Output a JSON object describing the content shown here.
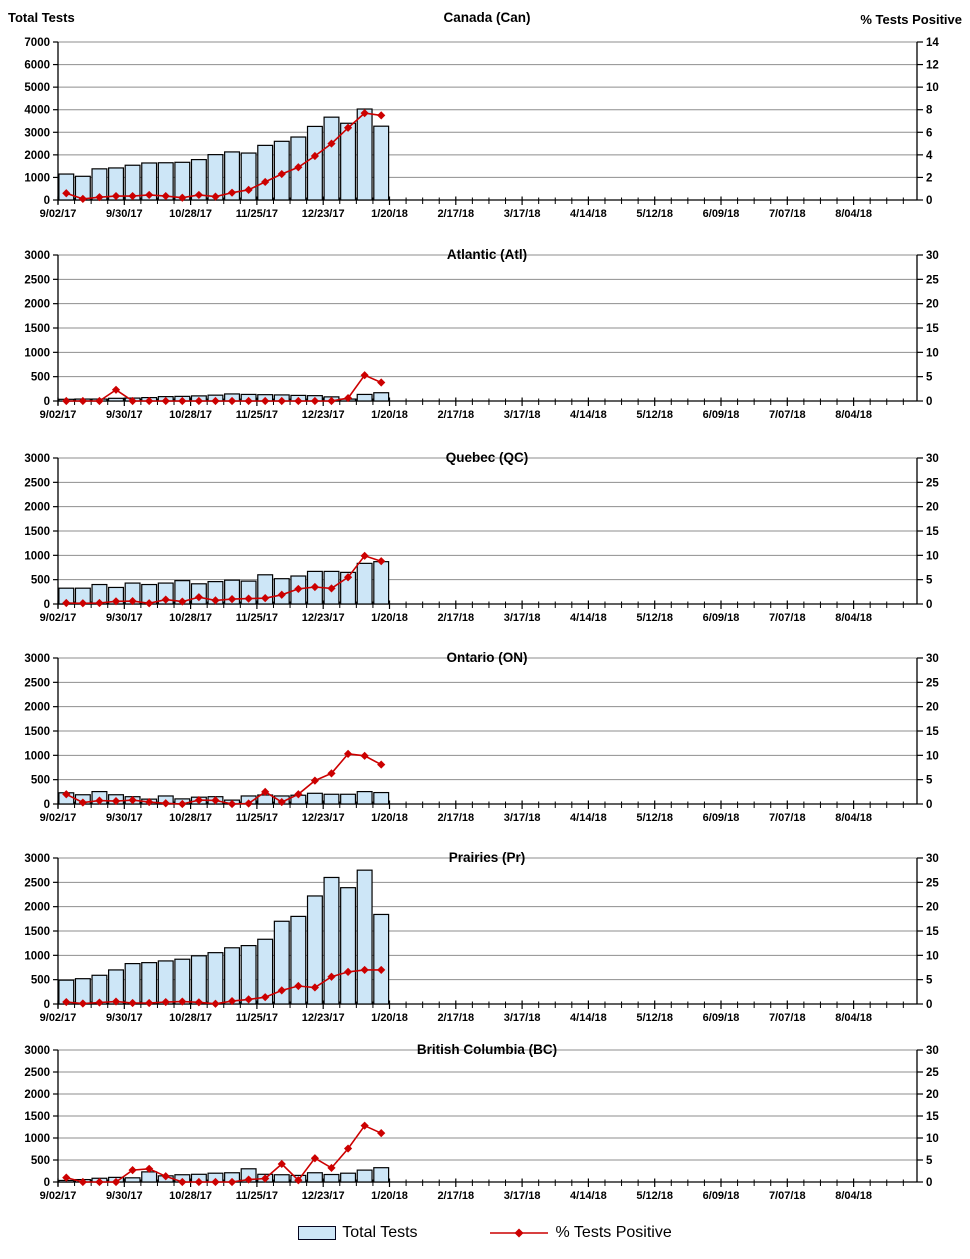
{
  "axis_titles": {
    "left": "Total Tests",
    "right": "% Tests Positive"
  },
  "legend": {
    "items": [
      {
        "label": "Total Tests",
        "type": "bar"
      },
      {
        "label": "% Tests Positive",
        "type": "line"
      }
    ]
  },
  "colors": {
    "background": "#FFFFFF",
    "bar_fill": "#CDE6F7",
    "bar_stroke": "#000000",
    "line": "#CC0000",
    "grid": "#8E8E8E",
    "axis": "#000000",
    "text": "#000000"
  },
  "x_axis": {
    "tick_labels": [
      "9/02/17",
      "9/30/17",
      "10/28/17",
      "11/25/17",
      "12/23/17",
      "1/20/18",
      "2/17/18",
      "3/17/18",
      "4/14/18",
      "5/12/18",
      "6/09/18",
      "7/07/18",
      "8/04/18"
    ],
    "weeks_total": 48,
    "minor_tick_every_weeks": 1,
    "major_tick_every_weeks": 4
  },
  "weeks": [
    "9/02/17",
    "9/09/17",
    "9/16/17",
    "9/23/17",
    "9/30/17",
    "10/07/17",
    "10/14/17",
    "10/21/17",
    "10/28/17",
    "11/04/17",
    "11/11/17",
    "11/18/17",
    "11/25/17",
    "12/02/17",
    "12/09/17",
    "12/16/17",
    "12/23/17",
    "12/30/17",
    "1/06/18",
    "1/13/18"
  ],
  "chart_data": [
    {
      "id": "canada",
      "type": "combo-bar-line",
      "title": "Canada (Can)",
      "left_axis": {
        "label": "Total Tests",
        "min": 0,
        "max": 7000,
        "step": 1000,
        "ticks": [
          "0",
          "1000",
          "2000",
          "3000",
          "4000",
          "5000",
          "6000",
          "7000"
        ]
      },
      "right_axis": {
        "label": "% Tests Positive",
        "min": 0,
        "max": 14,
        "step": 2,
        "ticks": [
          "0",
          "2",
          "4",
          "6",
          "8",
          "10",
          "12",
          "14"
        ]
      },
      "series": [
        {
          "name": "Total Tests",
          "type": "bar",
          "values": [
            1150,
            1050,
            1380,
            1420,
            1540,
            1640,
            1650,
            1670,
            1790,
            2010,
            2130,
            2080,
            2420,
            2600,
            2790,
            3260,
            3670,
            3400,
            4030,
            3270
          ]
        },
        {
          "name": "% Tests Positive",
          "type": "line",
          "values": [
            0.6,
            0.1,
            0.25,
            0.35,
            0.35,
            0.45,
            0.35,
            0.2,
            0.45,
            0.3,
            0.65,
            0.9,
            1.6,
            2.3,
            2.9,
            3.9,
            5.0,
            6.4,
            7.7,
            7.5
          ]
        }
      ]
    },
    {
      "id": "atlantic",
      "type": "combo-bar-line",
      "title": "Atlantic (Atl)",
      "left_axis": {
        "min": 0,
        "max": 3000,
        "step": 500,
        "ticks": [
          "0",
          "500",
          "1000",
          "1500",
          "2000",
          "2500",
          "3000"
        ]
      },
      "right_axis": {
        "min": 0,
        "max": 30,
        "step": 5,
        "ticks": [
          "0",
          "5",
          "10",
          "15",
          "20",
          "25",
          "30"
        ]
      },
      "series": [
        {
          "name": "Total Tests",
          "type": "bar",
          "values": [
            35,
            40,
            40,
            55,
            60,
            70,
            90,
            95,
            105,
            120,
            145,
            135,
            130,
            125,
            115,
            110,
            85,
            40,
            135,
            170
          ]
        },
        {
          "name": "% Tests Positive",
          "type": "line",
          "values": [
            0,
            0,
            0,
            2.3,
            0,
            0,
            0,
            0,
            0,
            0,
            0,
            0,
            0,
            0,
            0,
            0,
            0,
            0.6,
            5.3,
            3.8
          ]
        }
      ]
    },
    {
      "id": "quebec",
      "type": "combo-bar-line",
      "title": "Quebec (QC)",
      "left_axis": {
        "min": 0,
        "max": 3000,
        "step": 500,
        "ticks": [
          "0",
          "500",
          "1000",
          "1500",
          "2000",
          "2500",
          "3000"
        ]
      },
      "right_axis": {
        "min": 0,
        "max": 30,
        "step": 5,
        "ticks": [
          "0",
          "5",
          "10",
          "15",
          "20",
          "25",
          "30"
        ]
      },
      "series": [
        {
          "name": "Total Tests",
          "type": "bar",
          "values": [
            325,
            325,
            400,
            340,
            430,
            400,
            430,
            480,
            415,
            460,
            490,
            470,
            600,
            520,
            575,
            670,
            670,
            650,
            835,
            870
          ]
        },
        {
          "name": "% Tests Positive",
          "type": "line",
          "values": [
            0.2,
            0.15,
            0.2,
            0.55,
            0.6,
            0.15,
            0.9,
            0.5,
            1.4,
            0.75,
            1.0,
            1.1,
            1.2,
            1.9,
            3.1,
            3.5,
            3.2,
            5.5,
            9.9,
            8.8
          ]
        }
      ]
    },
    {
      "id": "ontario",
      "type": "combo-bar-line",
      "title": "Ontario (ON)",
      "left_axis": {
        "min": 0,
        "max": 3000,
        "step": 500,
        "ticks": [
          "0",
          "500",
          "1000",
          "1500",
          "2000",
          "2500",
          "3000"
        ]
      },
      "right_axis": {
        "min": 0,
        "max": 30,
        "step": 5,
        "ticks": [
          "0",
          "5",
          "10",
          "15",
          "20",
          "25",
          "30"
        ]
      },
      "series": [
        {
          "name": "Total Tests",
          "type": "bar",
          "values": [
            230,
            190,
            255,
            190,
            150,
            100,
            165,
            105,
            140,
            150,
            80,
            165,
            185,
            165,
            180,
            220,
            200,
            200,
            255,
            235
          ]
        },
        {
          "name": "% Tests Positive",
          "type": "line",
          "values": [
            2.0,
            0.3,
            0.7,
            0.6,
            0.8,
            0.4,
            0.15,
            0,
            0.8,
            0.75,
            0,
            0.1,
            2.5,
            0.4,
            2.0,
            4.8,
            6.3,
            10.3,
            9.9,
            8.1
          ]
        }
      ]
    },
    {
      "id": "prairies",
      "type": "combo-bar-line",
      "title": "Prairies (Pr)",
      "left_axis": {
        "min": 0,
        "max": 3000,
        "step": 500,
        "ticks": [
          "0",
          "500",
          "1000",
          "1500",
          "2000",
          "2500",
          "3000"
        ]
      },
      "right_axis": {
        "min": 0,
        "max": 30,
        "step": 5,
        "ticks": [
          "0",
          "5",
          "10",
          "15",
          "20",
          "25",
          "30"
        ]
      },
      "series": [
        {
          "name": "Total Tests",
          "type": "bar",
          "values": [
            490,
            520,
            590,
            700,
            830,
            850,
            885,
            920,
            990,
            1055,
            1155,
            1200,
            1330,
            1700,
            1800,
            2220,
            2600,
            2390,
            2750,
            1840
          ]
        },
        {
          "name": "% Tests Positive",
          "type": "line",
          "values": [
            0.4,
            0.1,
            0.3,
            0.5,
            0.2,
            0.2,
            0.4,
            0.5,
            0.35,
            0.05,
            0.6,
            0.95,
            1.4,
            2.8,
            3.7,
            3.4,
            5.6,
            6.6,
            7.0,
            7.0
          ]
        }
      ]
    },
    {
      "id": "british-columbia",
      "type": "combo-bar-line",
      "title": "British Columbia (BC)",
      "left_axis": {
        "min": 0,
        "max": 3000,
        "step": 500,
        "ticks": [
          "0",
          "500",
          "1000",
          "1500",
          "2000",
          "2500",
          "3000"
        ]
      },
      "right_axis": {
        "min": 0,
        "max": 30,
        "step": 5,
        "ticks": [
          "0",
          "5",
          "10",
          "15",
          "20",
          "25",
          "30"
        ]
      },
      "series": [
        {
          "name": "Total Tests",
          "type": "bar",
          "values": [
            35,
            55,
            85,
            105,
            95,
            230,
            140,
            165,
            175,
            200,
            210,
            300,
            175,
            165,
            150,
            210,
            170,
            200,
            270,
            325
          ]
        },
        {
          "name": "% Tests Positive",
          "type": "line",
          "values": [
            1.0,
            0,
            0,
            0,
            2.7,
            3.0,
            1.3,
            0,
            0,
            0,
            0,
            0.55,
            0.8,
            4.1,
            0.4,
            5.4,
            3.2,
            7.6,
            12.8,
            11.1
          ]
        }
      ]
    }
  ]
}
